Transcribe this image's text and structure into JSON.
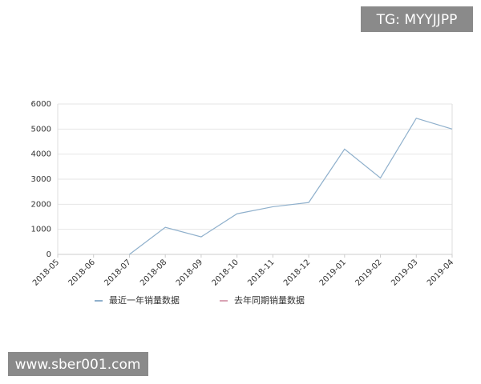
{
  "chart_data": {
    "type": "line",
    "categories": [
      "2018-05",
      "2018-06",
      "2018-07",
      "2018-08",
      "2018-09",
      "2018-10",
      "2018-11",
      "2018-12",
      "2019-01",
      "2019-02",
      "2019-03",
      "2019-04"
    ],
    "series": [
      {
        "name": "最近一年销量数据",
        "color": "#8fb0cc",
        "values": [
          null,
          null,
          0,
          1080,
          700,
          1620,
          1900,
          2070,
          4200,
          3050,
          5430,
          5000
        ]
      },
      {
        "name": "去年同期销量数据",
        "color": "#d9a3b4",
        "values": [
          null,
          null,
          null,
          null,
          null,
          null,
          null,
          null,
          null,
          null,
          null,
          null
        ]
      }
    ],
    "ylim": [
      0,
      6000
    ],
    "yticks": [
      0,
      1000,
      2000,
      3000,
      4000,
      5000,
      6000
    ],
    "grid": true,
    "annotations": [
      "TG: MYYJJPP",
      "www.sber001.com"
    ]
  }
}
